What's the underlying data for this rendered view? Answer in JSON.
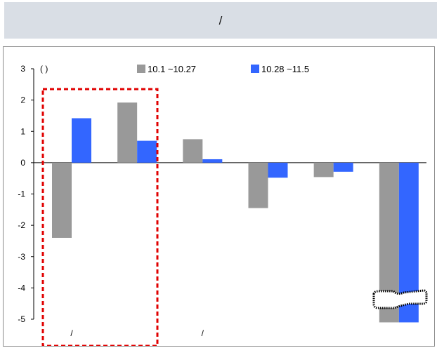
{
  "header": {
    "title": "/"
  },
  "chart_data": {
    "type": "bar",
    "ylabel": "(    )",
    "ylim": [
      -5,
      3
    ],
    "yticks": [
      3,
      2,
      1,
      0,
      -1,
      -2,
      -3,
      -4,
      -5
    ],
    "grid": false,
    "legend_position": "top",
    "categories": [
      "/",
      "",
      "/",
      "",
      "",
      ""
    ],
    "series": [
      {
        "name": "10.1  ~10.27",
        "color": "#999999",
        "values": [
          -2.4,
          1.92,
          0.75,
          -1.45,
          -0.46,
          -5.1
        ]
      },
      {
        "name": "10.28  ~11.5",
        "color": "#3366ff",
        "values": [
          1.42,
          0.7,
          0.11,
          -0.48,
          -0.29,
          -5.1
        ]
      }
    ],
    "annotations": [
      {
        "type": "dashed-box",
        "color": "#e00000",
        "around_categories": [
          0,
          1
        ]
      },
      {
        "type": "dotted-box",
        "color": "#000000",
        "around": "last-category-bar-ends",
        "text": ""
      }
    ]
  }
}
